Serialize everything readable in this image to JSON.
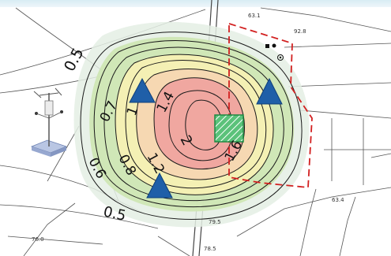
{
  "contour_labels": [
    "0.5",
    "0.7",
    "0.6",
    "0.8",
    "1",
    "1.2",
    "1.4",
    "2",
    "1.6",
    "0.5"
  ],
  "elevation_labels": [
    "63.1",
    "92.8",
    "63.4",
    "78.5",
    "79.5",
    "76.0"
  ],
  "colors": {
    "outer_halo": "#e4efe4",
    "green_zone": "#cfe6b4",
    "yellow_zone": "#f4f0b4",
    "orange_zone": "#f6d8b2",
    "red_zone": "#f0a7a0",
    "contour_line": "#1a1a1a",
    "boundary_dash": "#d22020",
    "marker": "#1f5fa8",
    "source_fill": "#5bc27a",
    "source_stroke": "#1e8a42"
  },
  "legend_icons": [
    "weather-station-icon"
  ]
}
